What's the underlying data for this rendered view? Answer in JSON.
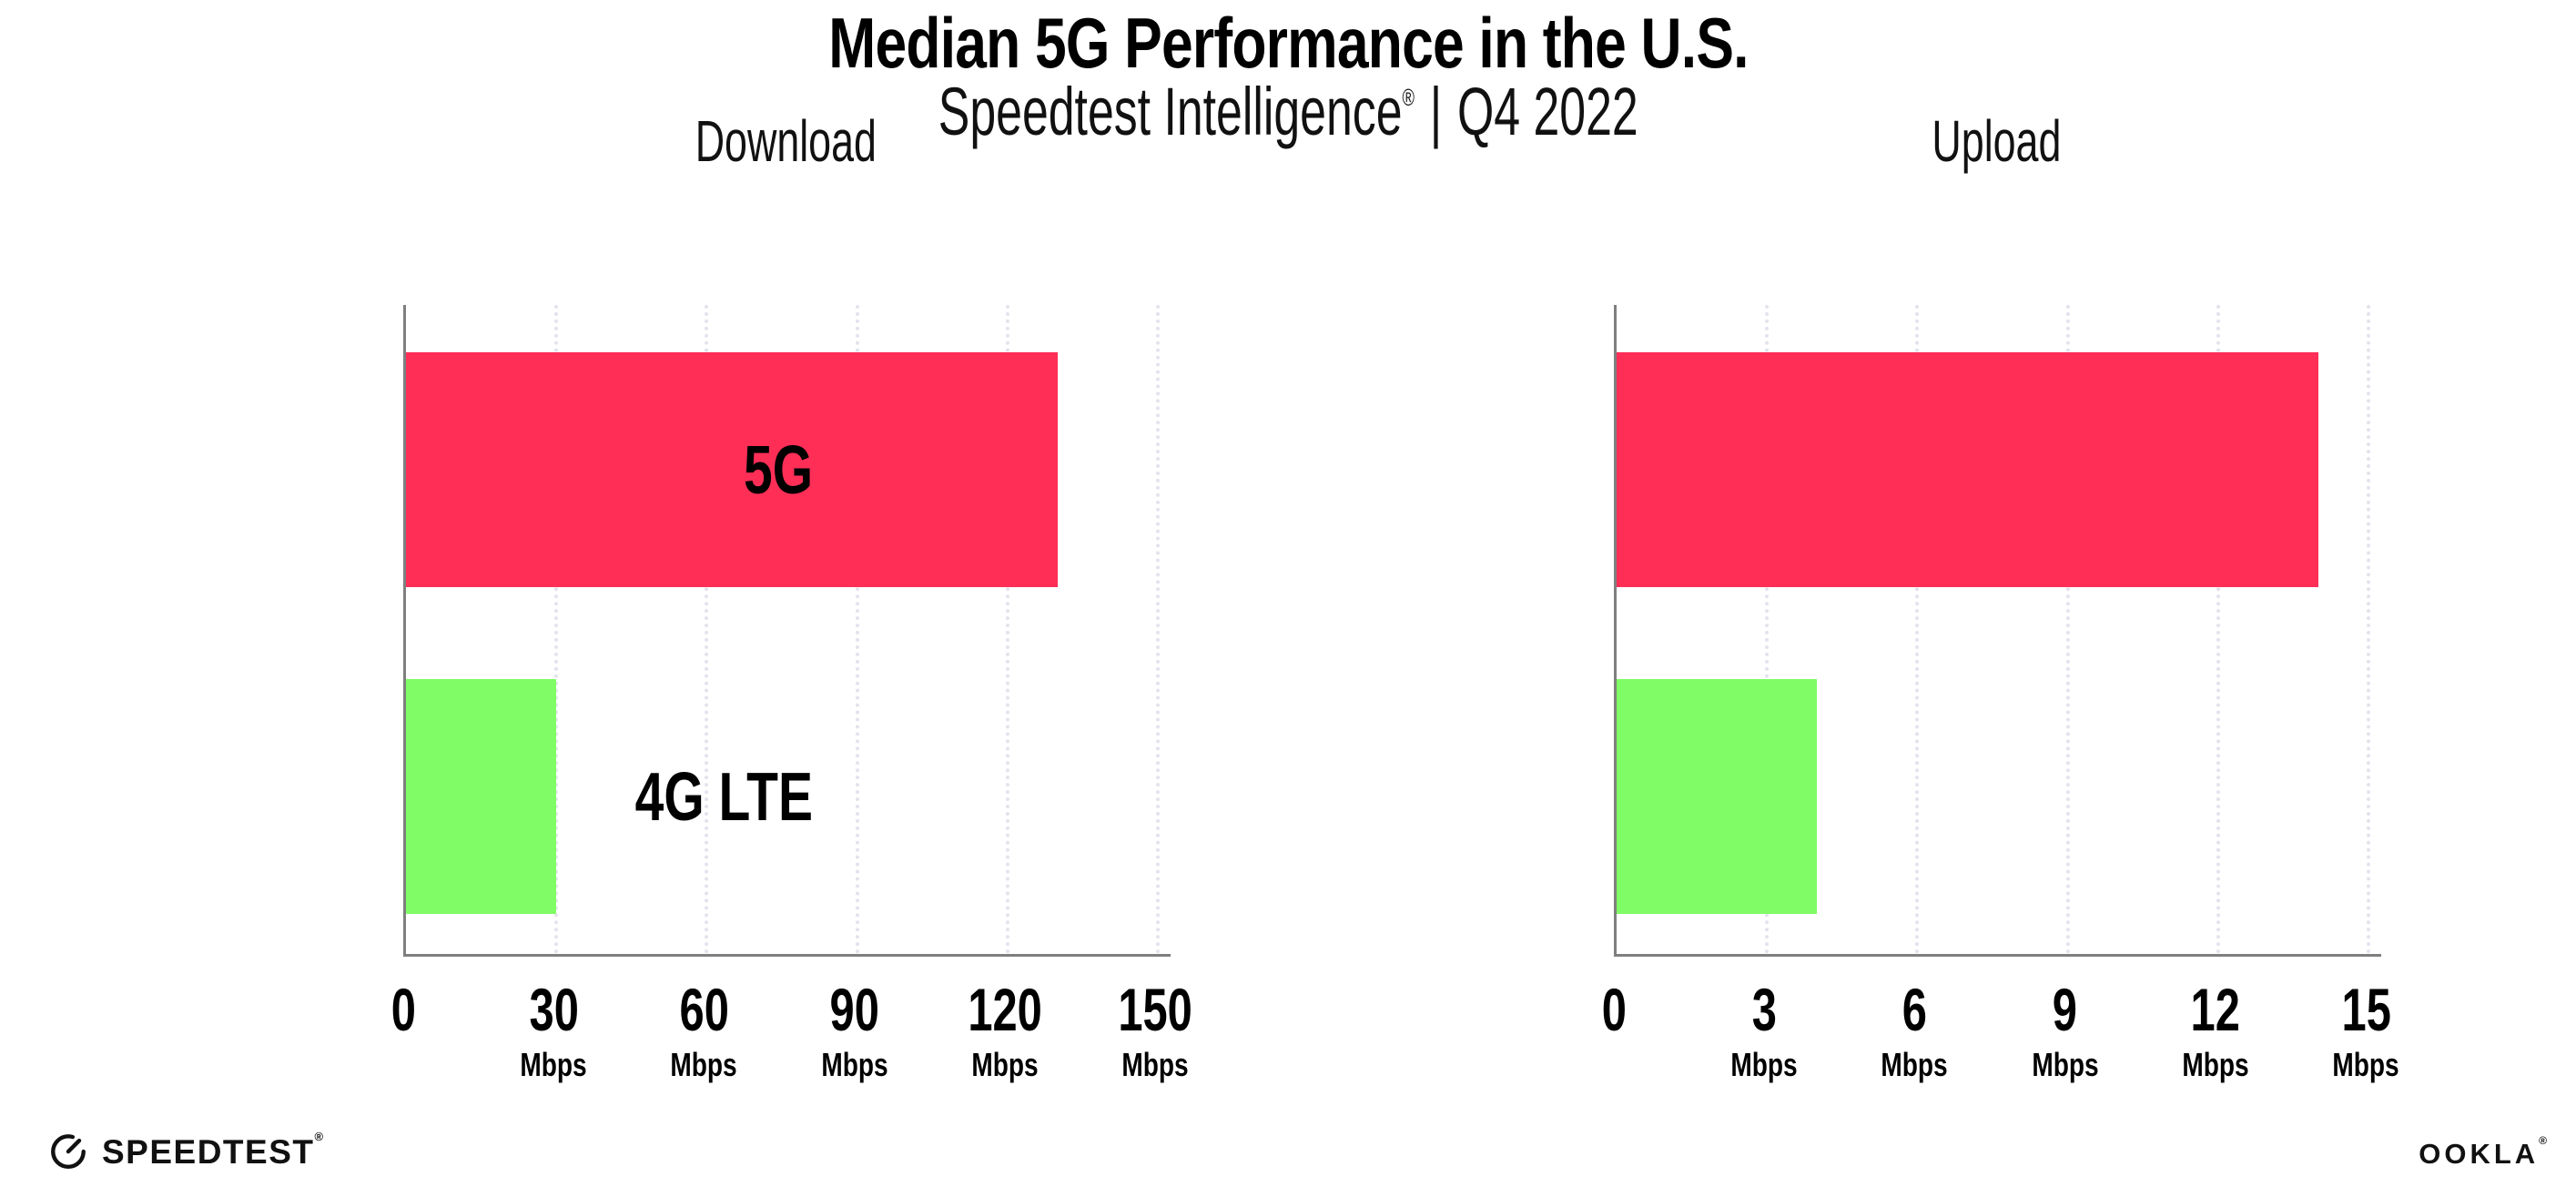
{
  "header": {
    "title": "Median 5G Performance in the U.S.",
    "subtitle_brand": "Speedtest Intelligence",
    "subtitle_registered": "®",
    "subtitle_separator": "|",
    "subtitle_period": "Q4 2022"
  },
  "colors": {
    "bar_5g": "#ff2e57",
    "bar_4g_lte": "#80fc66",
    "gridline": "#e3e3ee",
    "axis": "#7f7f7f",
    "text": "#000000"
  },
  "chart_data": [
    {
      "type": "bar",
      "orientation": "horizontal",
      "title": "Download",
      "categories": [
        "5G",
        "4G LTE"
      ],
      "values": [
        130,
        30
      ],
      "unit": "Mbps",
      "ticks": [
        0,
        30,
        60,
        90,
        120,
        150
      ],
      "tick_suffix": "Mbps",
      "xlim": [
        0,
        152.5
      ],
      "grid": "vertical-dotted",
      "legend": "none",
      "bar_colors": [
        "#ff2e57",
        "#80fc66"
      ]
    },
    {
      "type": "bar",
      "orientation": "horizontal",
      "title": "Upload",
      "categories": [
        "5G",
        "4G LTE"
      ],
      "values": [
        14,
        4
      ],
      "unit": "Mbps",
      "ticks": [
        0,
        3,
        6,
        9,
        12,
        15
      ],
      "tick_suffix": "Mbps",
      "xlim": [
        0,
        15.25
      ],
      "grid": "vertical-dotted",
      "legend": "none",
      "bar_colors": [
        "#ff2e57",
        "#80fc66"
      ]
    }
  ],
  "footer": {
    "speedtest_logo_text": "SPEEDTEST",
    "speedtest_registered": "®",
    "ookla_logo_text": "OOKLA",
    "ookla_registered": "®"
  }
}
